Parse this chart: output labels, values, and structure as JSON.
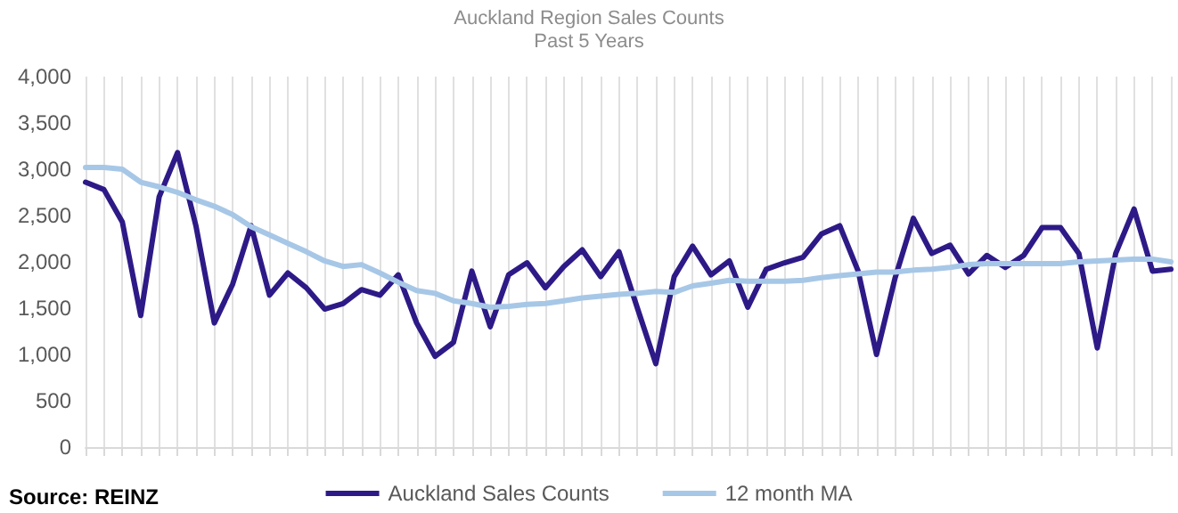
{
  "chart_data": {
    "type": "line",
    "title": "Auckland Region Sales Counts",
    "subtitle": "Past 5 Years",
    "categories": [
      null,
      null,
      null,
      null,
      null,
      null,
      null,
      null,
      null,
      null,
      null,
      null,
      null,
      null,
      null,
      null,
      null,
      null,
      null,
      null,
      null,
      null,
      null,
      null,
      null,
      null,
      null,
      null,
      null,
      null,
      null,
      null,
      null,
      null,
      null,
      null,
      null,
      null,
      null,
      null,
      null,
      null,
      null,
      null,
      null,
      null,
      null,
      null,
      null,
      null,
      null,
      null,
      null,
      null,
      null,
      null,
      null,
      null,
      null,
      null
    ],
    "series": [
      {
        "name": "Auckland Sales Counts",
        "color": "#2e1a87",
        "values": [
          2860,
          2780,
          2430,
          1420,
          2700,
          3180,
          2390,
          1340,
          1760,
          2390,
          1640,
          1880,
          1720,
          1490,
          1550,
          1700,
          1640,
          1860,
          1340,
          980,
          1130,
          1900,
          1300,
          1860,
          1990,
          1720,
          1950,
          2130,
          1840,
          2110,
          1500,
          900,
          1840,
          2170,
          1860,
          2010,
          1510,
          1920,
          1990,
          2050,
          2300,
          2390,
          1900,
          1000,
          1820,
          2470,
          2090,
          2180,
          1870,
          2070,
          1940,
          2070,
          2370,
          2370,
          2090,
          1070,
          2090,
          2570,
          1900,
          1920
        ]
      },
      {
        "name": "12 month MA",
        "color": "#a7c7e7",
        "values": [
          3020,
          3020,
          3000,
          2860,
          2810,
          2750,
          2670,
          2600,
          2510,
          2380,
          2290,
          2200,
          2110,
          2010,
          1950,
          1970,
          1880,
          1780,
          1690,
          1660,
          1580,
          1550,
          1510,
          1520,
          1540,
          1550,
          1580,
          1610,
          1630,
          1650,
          1660,
          1680,
          1670,
          1740,
          1770,
          1800,
          1790,
          1790,
          1790,
          1800,
          1830,
          1850,
          1870,
          1890,
          1890,
          1910,
          1920,
          1940,
          1970,
          1980,
          1980,
          1980,
          1980,
          1980,
          2000,
          2010,
          2020,
          2030,
          2030,
          2000
        ]
      }
    ],
    "ylim": [
      0,
      4000
    ],
    "yticks": [
      0,
      500,
      {
        "value": 1000,
        "label": "1,000"
      },
      {
        "value": 1500,
        "label": "1,500"
      },
      {
        "value": 2000,
        "label": "2,000"
      },
      {
        "value": 2500,
        "label": "2,500"
      },
      {
        "value": 3000,
        "label": "3,000"
      },
      {
        "value": 3500,
        "label": "3,500"
      },
      {
        "value": 4000,
        "label": "4,000"
      }
    ],
    "grid": "x",
    "legend": "bottom",
    "marker": "none",
    "line_style": "solid",
    "annotations": [
      "Source: REINZ"
    ]
  }
}
